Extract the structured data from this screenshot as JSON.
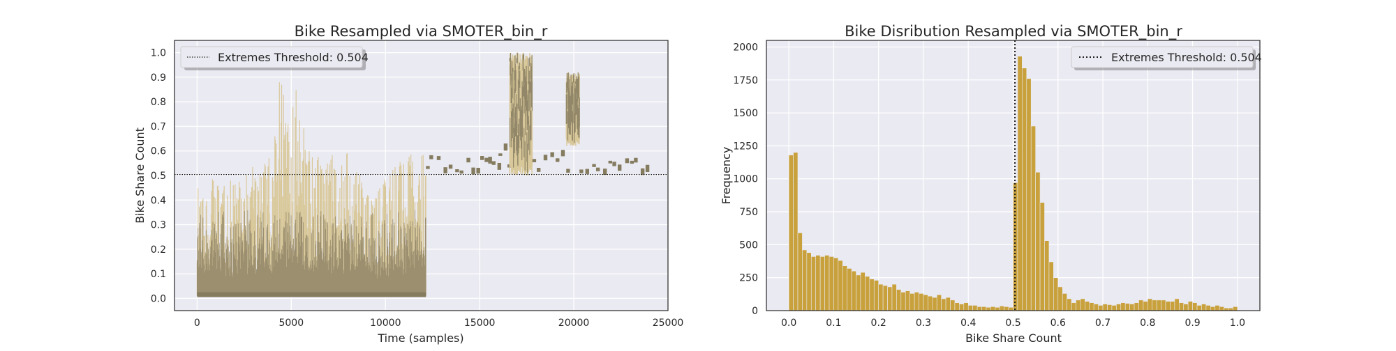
{
  "colors": {
    "axes_bg": "#eaeaf2",
    "grid": "#ffffff",
    "line_light": "#d9c89a",
    "line_dark": "#857c60",
    "hist_bar": "#c9a13c",
    "threshold": "#1a1a1a"
  },
  "chart_data": [
    {
      "type": "line",
      "title": "Bike Resampled via SMOTER_bin_r",
      "xlabel": "Time (samples)",
      "ylabel": "Bike Share Count",
      "xlim": [
        -1200,
        25000
      ],
      "ylim": [
        -0.05,
        1.05
      ],
      "xticks": [
        0,
        5000,
        10000,
        15000,
        20000,
        25000
      ],
      "xtick_labels": [
        "0",
        "5000",
        "10000",
        "15000",
        "20000",
        "25000"
      ],
      "yticks": [
        0.0,
        0.1,
        0.2,
        0.3,
        0.4,
        0.5,
        0.6,
        0.7,
        0.8,
        0.9,
        1.0
      ],
      "ytick_labels": [
        "0.0",
        "0.1",
        "0.2",
        "0.3",
        "0.4",
        "0.5",
        "0.6",
        "0.7",
        "0.8",
        "0.9",
        "1.0"
      ],
      "grid": true,
      "threshold": {
        "value": 0.504,
        "label": "Extremes Threshold: 0.504",
        "style": "dotted"
      },
      "legend": {
        "location": "upper-left"
      },
      "series_original": {
        "x_range": [
          0,
          12150
        ],
        "baseline": 0.01,
        "envelope": [
          {
            "x": 0,
            "y": 0.46
          },
          {
            "x": 1000,
            "y": 0.5
          },
          {
            "x": 2000,
            "y": 0.48
          },
          {
            "x": 3000,
            "y": 0.56
          },
          {
            "x": 4000,
            "y": 0.58
          },
          {
            "x": 4400,
            "y": 0.94
          },
          {
            "x": 5000,
            "y": 0.62
          },
          {
            "x": 5100,
            "y": 0.92
          },
          {
            "x": 6000,
            "y": 0.6
          },
          {
            "x": 7000,
            "y": 0.58
          },
          {
            "x": 8000,
            "y": 0.6
          },
          {
            "x": 8600,
            "y": 0.55
          },
          {
            "x": 9000,
            "y": 0.42
          },
          {
            "x": 10000,
            "y": 0.5
          },
          {
            "x": 11000,
            "y": 0.58
          },
          {
            "x": 12000,
            "y": 0.62
          },
          {
            "x": 12150,
            "y": 0.58
          }
        ]
      },
      "series_synthetic": {
        "x_range": [
          12150,
          24000
        ],
        "segments": [
          {
            "x0": 12150,
            "x1": 16000,
            "ymin": 0.51,
            "ymax": 0.58
          },
          {
            "x0": 16000,
            "x1": 16600,
            "ymin": 0.52,
            "ymax": 0.63
          },
          {
            "x0": 16600,
            "x1": 17800,
            "ymin": 0.5,
            "ymax": 1.0
          },
          {
            "x0": 17800,
            "x1": 19600,
            "ymin": 0.51,
            "ymax": 0.6
          },
          {
            "x0": 19600,
            "x1": 20300,
            "ymin": 0.62,
            "ymax": 0.92
          },
          {
            "x0": 20300,
            "x1": 24000,
            "ymin": 0.51,
            "ymax": 0.57
          }
        ]
      }
    },
    {
      "type": "bar",
      "title": "Bike Disribution Resampled via SMOTER_bin_r",
      "xlabel": "Bike Share Count",
      "ylabel": "Frequency",
      "xlim": [
        -0.05,
        1.05
      ],
      "ylim": [
        0,
        2050
      ],
      "xticks": [
        0.0,
        0.1,
        0.2,
        0.3,
        0.4,
        0.5,
        0.6,
        0.7,
        0.8,
        0.9,
        1.0
      ],
      "xtick_labels": [
        "0.0",
        "0.1",
        "0.2",
        "0.3",
        "0.4",
        "0.5",
        "0.6",
        "0.7",
        "0.8",
        "0.9",
        "1.0"
      ],
      "yticks": [
        0,
        250,
        500,
        750,
        1000,
        1250,
        1500,
        1750,
        2000
      ],
      "ytick_labels": [
        "0",
        "250",
        "500",
        "750",
        "1000",
        "1250",
        "1500",
        "1750",
        "2000"
      ],
      "grid": true,
      "threshold": {
        "value": 0.504,
        "label": "Extremes Threshold: 0.504",
        "style": "dotted"
      },
      "legend": {
        "location": "upper-right"
      },
      "bin_start": 0.0,
      "bin_width": 0.01,
      "values": [
        1180,
        1200,
        590,
        460,
        440,
        410,
        420,
        410,
        420,
        410,
        400,
        380,
        340,
        320,
        300,
        270,
        290,
        260,
        240,
        230,
        200,
        190,
        180,
        200,
        160,
        140,
        150,
        130,
        140,
        130,
        120,
        110,
        100,
        120,
        90,
        100,
        80,
        60,
        50,
        60,
        40,
        40,
        30,
        30,
        25,
        30,
        25,
        35,
        30,
        25,
        970,
        1930,
        1840,
        1760,
        1400,
        1050,
        820,
        530,
        370,
        250,
        180,
        130,
        90,
        60,
        80,
        90,
        70,
        60,
        50,
        40,
        50,
        45,
        40,
        50,
        60,
        55,
        50,
        60,
        80,
        70,
        90,
        80,
        80,
        80,
        70,
        70,
        90,
        60,
        50,
        70,
        60,
        40,
        50,
        40,
        30,
        40,
        30,
        20,
        20,
        30
      ]
    }
  ]
}
